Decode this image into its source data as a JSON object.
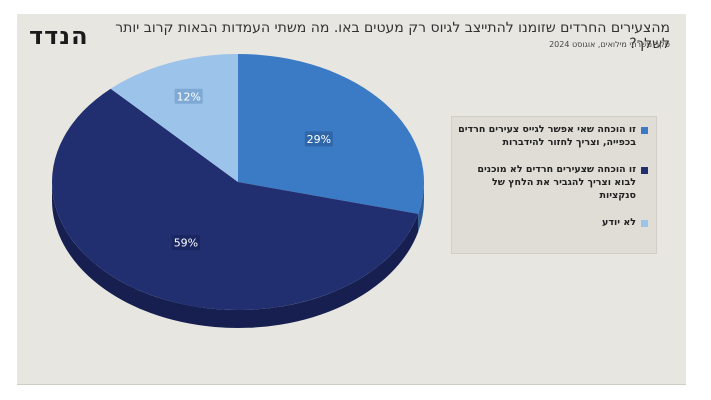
{
  "logo": {
    "text": "הנדד"
  },
  "chart_data": {
    "type": "pie",
    "title": "מהצעירים החרדים שזומנו להתייצב לגיוס רק מעטים באו. מה משתי העמדות הבאות קרוב יותר לשלך?",
    "subtitle": "סקר משרתי מילואים, אוגוסט 2024",
    "categories": [
      "זו הוכחה שאי אפשר לגייס צעירים חרדים בכפייה, וצריך לחזור להידברות",
      "זו הוכחה שצעירים חרדים לא מוכנים לבוא וצריך להגביר את הלחץ של סנקציות",
      "לא יודע"
    ],
    "values": [
      29,
      59,
      12
    ],
    "data_labels": [
      "29%",
      "59%",
      "12%"
    ],
    "colors": [
      "#3b7ac4",
      "#212f70",
      "#9cc3ea"
    ],
    "side_colors": [
      "#2b5c98",
      "#161f4f",
      "#7fa6cc"
    ],
    "legend_position": "right"
  }
}
